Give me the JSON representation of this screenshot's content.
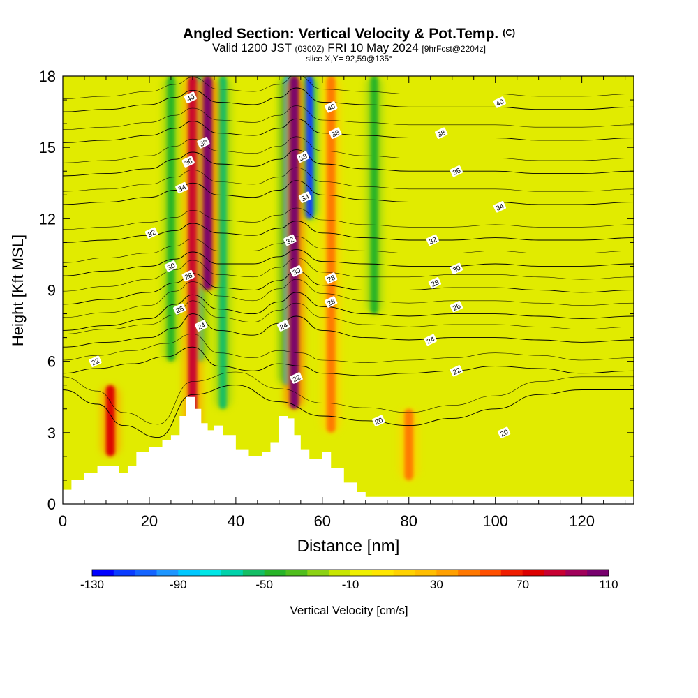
{
  "title_main": "Angled Section: Vertical Velocity & Pot.Temp.",
  "title_mark": "(C)",
  "subtitle_a": "Valid 1200 JST",
  "subtitle_b": "(0300Z)",
  "subtitle_c": "FRI 10 May 2024",
  "subtitle_d": "[9hrFcst@2204z]",
  "slice_label": "slice X,Y= 92,59@135°",
  "colors": {
    "scale": [
      "#0000ff",
      "#0a3cff",
      "#1464ff",
      "#1e96ff",
      "#00c8ff",
      "#00e6e6",
      "#00d2aa",
      "#14be64",
      "#28b428",
      "#50be1e",
      "#8cd214",
      "#c8e600",
      "#f0f000",
      "#ffe600",
      "#ffd200",
      "#ffbe00",
      "#ffa000",
      "#ff7800",
      "#ff5000",
      "#f01e00",
      "#dc0000",
      "#c80032",
      "#a0005a",
      "#78006e"
    ],
    "terrain": "#ffffff",
    "contour": "#000000"
  },
  "chart_data": {
    "type": "heatmap",
    "xlabel": "Distance [nm]",
    "ylabel": "Height [Kft MSL]",
    "xlim": [
      0,
      132
    ],
    "ylim": [
      0,
      18
    ],
    "xticks": [
      0,
      20,
      40,
      60,
      80,
      100,
      120
    ],
    "yticks": [
      0,
      3,
      6,
      9,
      12,
      15,
      18
    ],
    "colorbar": {
      "label": "Vertical Velocity [cm/s]",
      "min": -130,
      "max": 120,
      "step": 10,
      "ticks": [
        -130,
        -90,
        -50,
        -10,
        30,
        70,
        110
      ]
    },
    "updraft_columns": [
      {
        "x": 11,
        "bottom": 2,
        "top": 5,
        "value": 70
      },
      {
        "x": 30,
        "bottom": 3,
        "top": 18,
        "value": 80
      },
      {
        "x": 33.5,
        "bottom": 9,
        "top": 18,
        "value": 110
      },
      {
        "x": 53.5,
        "bottom": 4,
        "top": 18,
        "value": 110
      },
      {
        "x": 62,
        "bottom": 3,
        "top": 18,
        "value": 40
      },
      {
        "x": 80,
        "bottom": 1,
        "top": 4,
        "value": 40
      }
    ],
    "downdraft_columns": [
      {
        "x": 25,
        "bottom": 6,
        "top": 18,
        "value": -50
      },
      {
        "x": 31.5,
        "bottom": 6,
        "top": 18,
        "value": -70
      },
      {
        "x": 37,
        "bottom": 4,
        "top": 18,
        "value": -60
      },
      {
        "x": 52,
        "bottom": 5,
        "top": 18,
        "value": -90
      },
      {
        "x": 57,
        "bottom": 12,
        "top": 18,
        "value": -120
      },
      {
        "x": 72,
        "bottom": 8,
        "top": 18,
        "value": -50
      }
    ],
    "terrain_height": [
      {
        "x": 0,
        "h": 0.6
      },
      {
        "x": 2,
        "h": 1.0
      },
      {
        "x": 5,
        "h": 1.3
      },
      {
        "x": 8,
        "h": 1.6
      },
      {
        "x": 13,
        "h": 1.3
      },
      {
        "x": 15,
        "h": 1.6
      },
      {
        "x": 17,
        "h": 2.2
      },
      {
        "x": 20,
        "h": 2.4
      },
      {
        "x": 23,
        "h": 2.7
      },
      {
        "x": 25,
        "h": 2.9
      },
      {
        "x": 27,
        "h": 3.7
      },
      {
        "x": 28.5,
        "h": 4.5
      },
      {
        "x": 30.5,
        "h": 4.0
      },
      {
        "x": 32,
        "h": 3.4
      },
      {
        "x": 33.5,
        "h": 3.1
      },
      {
        "x": 35,
        "h": 3.3
      },
      {
        "x": 37,
        "h": 2.9
      },
      {
        "x": 40,
        "h": 2.3
      },
      {
        "x": 43,
        "h": 2.0
      },
      {
        "x": 46,
        "h": 2.2
      },
      {
        "x": 48,
        "h": 2.6
      },
      {
        "x": 50,
        "h": 3.7
      },
      {
        "x": 52,
        "h": 3.6
      },
      {
        "x": 53.5,
        "h": 2.9
      },
      {
        "x": 55,
        "h": 2.3
      },
      {
        "x": 57,
        "h": 1.9
      },
      {
        "x": 60,
        "h": 2.2
      },
      {
        "x": 62,
        "h": 1.5
      },
      {
        "x": 65,
        "h": 0.9
      },
      {
        "x": 68,
        "h": 0.5
      },
      {
        "x": 70,
        "h": 0.3
      },
      {
        "x": 132,
        "h": 0.3
      }
    ],
    "theta_contours": [
      {
        "label": "20",
        "levels": [
          [
            0,
            4.8
          ],
          [
            8,
            4.2
          ],
          [
            14,
            3.3
          ],
          [
            22,
            2.8
          ],
          [
            30,
            4.6
          ],
          [
            40,
            5.0
          ],
          [
            50,
            4.3
          ],
          [
            60,
            3.7
          ],
          [
            70,
            3.5
          ],
          [
            80,
            3.3
          ],
          [
            90,
            3.6
          ],
          [
            100,
            4.0
          ],
          [
            110,
            4.6
          ],
          [
            120,
            4.8
          ],
          [
            132,
            4.8
          ]
        ]
      },
      {
        "label": "22",
        "levels": [
          [
            0,
            5.5
          ],
          [
            8,
            5.7
          ],
          [
            16,
            5.9
          ],
          [
            24,
            6.2
          ],
          [
            30,
            6.6
          ],
          [
            36,
            5.8
          ],
          [
            44,
            5.6
          ],
          [
            50,
            5.9
          ],
          [
            55,
            5.8
          ],
          [
            60,
            5.5
          ],
          [
            70,
            5.4
          ],
          [
            80,
            5.5
          ],
          [
            90,
            5.6
          ],
          [
            100,
            5.8
          ],
          [
            110,
            5.7
          ],
          [
            120,
            5.5
          ],
          [
            132,
            5.6
          ]
        ]
      },
      {
        "label": "24",
        "levels": [
          [
            0,
            6.6
          ],
          [
            10,
            6.8
          ],
          [
            20,
            7.0
          ],
          [
            26,
            7.4
          ],
          [
            30,
            8.0
          ],
          [
            36,
            7.3
          ],
          [
            44,
            7.1
          ],
          [
            50,
            7.6
          ],
          [
            54,
            7.9
          ],
          [
            60,
            7.3
          ],
          [
            70,
            7.0
          ],
          [
            80,
            6.9
          ],
          [
            90,
            7.0
          ],
          [
            100,
            7.0
          ],
          [
            110,
            6.9
          ],
          [
            120,
            6.8
          ],
          [
            132,
            6.9
          ]
        ]
      },
      {
        "label": "26",
        "levels": [
          [
            0,
            7.3
          ],
          [
            10,
            7.5
          ],
          [
            20,
            7.8
          ],
          [
            26,
            8.4
          ],
          [
            30,
            8.8
          ],
          [
            36,
            8.2
          ],
          [
            44,
            8.0
          ],
          [
            50,
            8.5
          ],
          [
            54,
            8.9
          ],
          [
            60,
            8.3
          ],
          [
            70,
            8.0
          ],
          [
            80,
            7.9
          ],
          [
            90,
            8.0
          ],
          [
            100,
            8.0
          ],
          [
            110,
            7.9
          ],
          [
            120,
            7.8
          ],
          [
            132,
            7.9
          ]
        ]
      },
      {
        "label": "28",
        "levels": [
          [
            0,
            8.4
          ],
          [
            10,
            8.6
          ],
          [
            20,
            8.9
          ],
          [
            26,
            9.3
          ],
          [
            30,
            9.7
          ],
          [
            36,
            9.1
          ],
          [
            44,
            9.0
          ],
          [
            50,
            9.4
          ],
          [
            54,
            9.8
          ],
          [
            60,
            9.2
          ],
          [
            70,
            9.0
          ],
          [
            80,
            9.0
          ],
          [
            90,
            9.1
          ],
          [
            100,
            9.1
          ],
          [
            110,
            9.0
          ],
          [
            120,
            8.9
          ],
          [
            132,
            9.0
          ]
        ]
      },
      {
        "label": "30",
        "levels": [
          [
            0,
            9.6
          ],
          [
            10,
            9.8
          ],
          [
            20,
            10.0
          ],
          [
            26,
            10.3
          ],
          [
            30,
            10.6
          ],
          [
            36,
            10.1
          ],
          [
            44,
            10.1
          ],
          [
            50,
            10.4
          ],
          [
            54,
            10.7
          ],
          [
            60,
            10.2
          ],
          [
            70,
            10.1
          ],
          [
            80,
            10.0
          ],
          [
            90,
            10.0
          ],
          [
            100,
            10.1
          ],
          [
            110,
            10.0
          ],
          [
            120,
            10.0
          ],
          [
            132,
            10.1
          ]
        ]
      },
      {
        "label": "32",
        "levels": [
          [
            0,
            11.0
          ],
          [
            10,
            11.1
          ],
          [
            20,
            11.3
          ],
          [
            26,
            11.5
          ],
          [
            30,
            11.8
          ],
          [
            36,
            11.4
          ],
          [
            44,
            11.3
          ],
          [
            50,
            11.6
          ],
          [
            54,
            11.9
          ],
          [
            60,
            11.4
          ],
          [
            70,
            11.2
          ],
          [
            80,
            11.1
          ],
          [
            90,
            11.1
          ],
          [
            100,
            11.2
          ],
          [
            110,
            11.1
          ],
          [
            120,
            11.1
          ],
          [
            132,
            11.2
          ]
        ]
      },
      {
        "label": "34",
        "levels": [
          [
            0,
            12.6
          ],
          [
            10,
            12.7
          ],
          [
            20,
            12.9
          ],
          [
            26,
            13.2
          ],
          [
            30,
            13.5
          ],
          [
            36,
            13.0
          ],
          [
            44,
            12.9
          ],
          [
            50,
            13.2
          ],
          [
            54,
            13.6
          ],
          [
            60,
            13.0
          ],
          [
            70,
            12.8
          ],
          [
            80,
            12.7
          ],
          [
            90,
            12.7
          ],
          [
            100,
            12.7
          ],
          [
            110,
            12.6
          ],
          [
            120,
            12.6
          ],
          [
            132,
            12.7
          ]
        ]
      },
      {
        "label": "36",
        "levels": [
          [
            0,
            13.8
          ],
          [
            10,
            13.9
          ],
          [
            20,
            14.1
          ],
          [
            26,
            14.5
          ],
          [
            30,
            14.8
          ],
          [
            36,
            14.3
          ],
          [
            44,
            14.2
          ],
          [
            50,
            14.5
          ],
          [
            54,
            14.9
          ],
          [
            60,
            14.3
          ],
          [
            70,
            14.1
          ],
          [
            80,
            14.0
          ],
          [
            90,
            14.0
          ],
          [
            100,
            14.0
          ],
          [
            110,
            13.9
          ],
          [
            120,
            13.9
          ],
          [
            132,
            14.0
          ]
        ]
      },
      {
        "label": "38",
        "levels": [
          [
            0,
            15.2
          ],
          [
            10,
            15.3
          ],
          [
            20,
            15.5
          ],
          [
            26,
            15.8
          ],
          [
            30,
            16.1
          ],
          [
            36,
            15.6
          ],
          [
            44,
            15.5
          ],
          [
            50,
            15.8
          ],
          [
            54,
            16.2
          ],
          [
            60,
            15.6
          ],
          [
            70,
            15.5
          ],
          [
            80,
            15.4
          ],
          [
            90,
            15.4
          ],
          [
            100,
            15.4
          ],
          [
            110,
            15.3
          ],
          [
            120,
            15.3
          ],
          [
            132,
            15.4
          ]
        ]
      },
      {
        "label": "40",
        "levels": [
          [
            0,
            16.5
          ],
          [
            10,
            16.6
          ],
          [
            20,
            16.8
          ],
          [
            26,
            17.1
          ],
          [
            30,
            17.4
          ],
          [
            36,
            16.9
          ],
          [
            44,
            16.8
          ],
          [
            50,
            17.1
          ],
          [
            54,
            17.5
          ],
          [
            60,
            16.9
          ],
          [
            70,
            16.8
          ],
          [
            80,
            16.7
          ],
          [
            90,
            16.7
          ],
          [
            100,
            16.7
          ],
          [
            110,
            16.6
          ],
          [
            120,
            16.6
          ],
          [
            132,
            16.7
          ]
        ]
      }
    ],
    "contour_labels": [
      {
        "text": "20",
        "x": 73,
        "y": 3.5
      },
      {
        "text": "20",
        "x": 102,
        "y": 3.0
      },
      {
        "text": "22",
        "x": 7.5,
        "y": 6.0
      },
      {
        "text": "22",
        "x": 54,
        "y": 5.3
      },
      {
        "text": "22",
        "x": 91,
        "y": 5.6
      },
      {
        "text": "24",
        "x": 32,
        "y": 7.5
      },
      {
        "text": "24",
        "x": 51,
        "y": 7.5
      },
      {
        "text": "24",
        "x": 85,
        "y": 6.9
      },
      {
        "text": "26",
        "x": 27,
        "y": 8.2
      },
      {
        "text": "26",
        "x": 62,
        "y": 8.5
      },
      {
        "text": "26",
        "x": 91,
        "y": 8.3
      },
      {
        "text": "28",
        "x": 29,
        "y": 9.6
      },
      {
        "text": "28",
        "x": 62,
        "y": 9.5
      },
      {
        "text": "28",
        "x": 86,
        "y": 9.3
      },
      {
        "text": "30",
        "x": 25,
        "y": 10.0
      },
      {
        "text": "30",
        "x": 54,
        "y": 9.8
      },
      {
        "text": "30",
        "x": 91,
        "y": 9.9
      },
      {
        "text": "32",
        "x": 20.5,
        "y": 11.4
      },
      {
        "text": "32",
        "x": 52.5,
        "y": 11.1
      },
      {
        "text": "32",
        "x": 85.5,
        "y": 11.1
      },
      {
        "text": "34",
        "x": 27.5,
        "y": 13.3
      },
      {
        "text": "34",
        "x": 56,
        "y": 12.9
      },
      {
        "text": "34",
        "x": 101,
        "y": 12.5
      },
      {
        "text": "36",
        "x": 29,
        "y": 14.4
      },
      {
        "text": "36",
        "x": 91,
        "y": 14.0
      },
      {
        "text": "38",
        "x": 32.5,
        "y": 15.2
      },
      {
        "text": "38",
        "x": 55.5,
        "y": 14.6
      },
      {
        "text": "38",
        "x": 63,
        "y": 15.6
      },
      {
        "text": "38",
        "x": 87.5,
        "y": 15.6
      },
      {
        "text": "40",
        "x": 29.5,
        "y": 17.1
      },
      {
        "text": "40",
        "x": 62,
        "y": 16.7
      },
      {
        "text": "40",
        "x": 101,
        "y": 16.9
      }
    ]
  }
}
